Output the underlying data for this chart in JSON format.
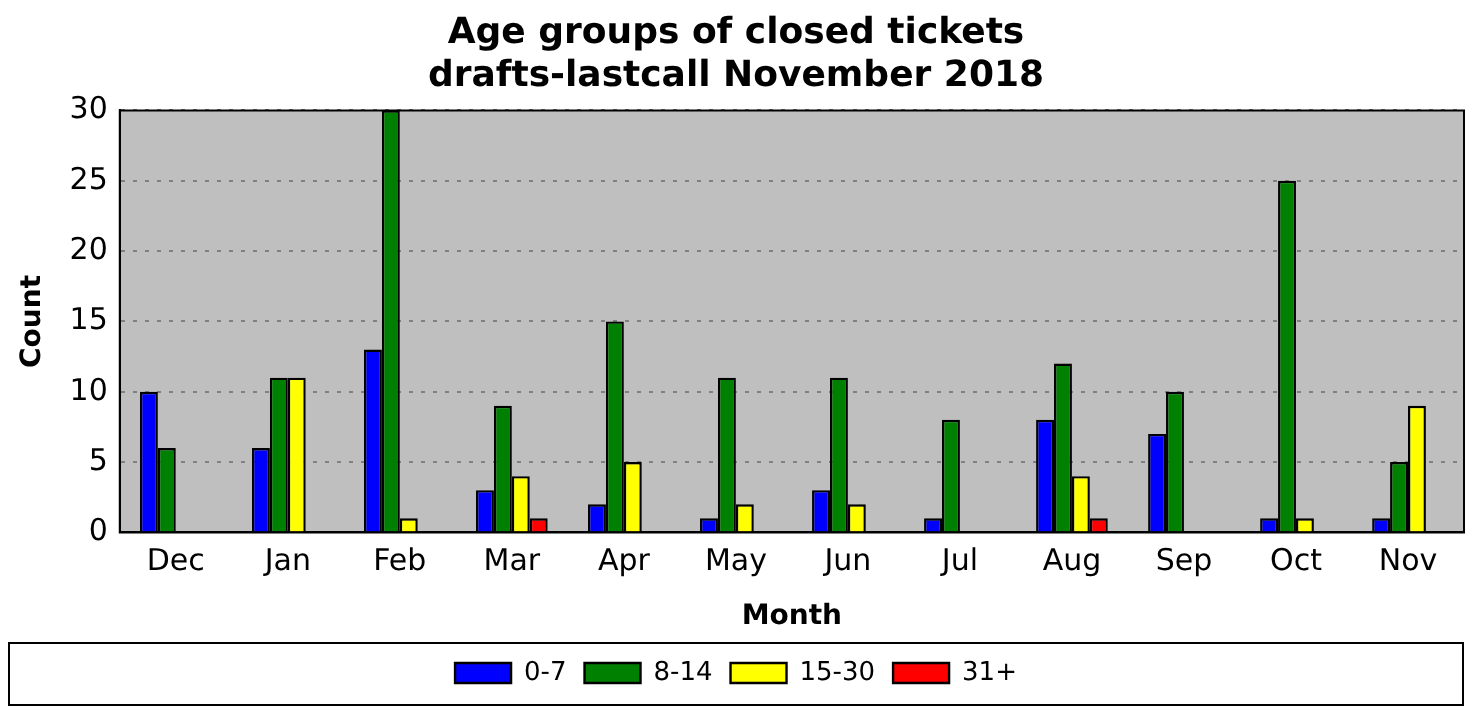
{
  "chart_data": {
    "type": "bar",
    "title": "Age groups of closed tickets\ndrafts-lastcall November 2018",
    "xlabel": "Month",
    "ylabel": "Count",
    "categories": [
      "Dec",
      "Jan",
      "Feb",
      "Mar",
      "Apr",
      "May",
      "Jun",
      "Jul",
      "Aug",
      "Sep",
      "Oct",
      "Nov"
    ],
    "series": [
      {
        "name": "0-7",
        "color": "#0000ff",
        "values": [
          10,
          6,
          13,
          3,
          2,
          1,
          3,
          1,
          8,
          7,
          1,
          1
        ]
      },
      {
        "name": "8-14",
        "color": "#008000",
        "values": [
          6,
          11,
          30,
          9,
          15,
          11,
          11,
          8,
          12,
          10,
          25,
          5
        ]
      },
      {
        "name": "15-30",
        "color": "#ffff00",
        "values": [
          0,
          11,
          1,
          4,
          5,
          2,
          2,
          0,
          4,
          0,
          1,
          9
        ]
      },
      {
        "name": "31+",
        "color": "#ff0000",
        "values": [
          0,
          0,
          0,
          1,
          0,
          0,
          0,
          0,
          1,
          0,
          0,
          0
        ]
      }
    ],
    "ylim": [
      0,
      30
    ],
    "yticks": [
      0,
      5,
      10,
      15,
      20,
      25,
      30
    ],
    "grid": "y",
    "legend": "bottom"
  }
}
